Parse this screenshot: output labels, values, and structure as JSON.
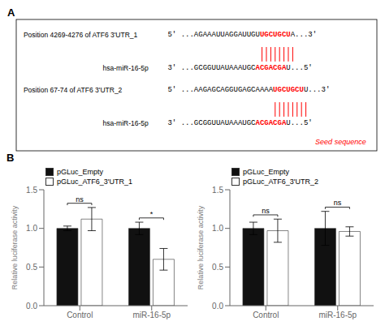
{
  "chart_data": [
    {
      "type": "sequence_alignment",
      "title": "A",
      "sites": [
        {
          "label": "Position 4269-4276 of ATF6 3'UTR_1",
          "target": [
            {
              "text": "5' ...AGAAAUUAGGAUUGU"
            },
            {
              "text": "UGCUGCU",
              "color": "#FF0000"
            },
            {
              "text": "A...3'"
            }
          ],
          "mirna": "hsa-miR-16-5p",
          "mirna_seq": [
            {
              "text": "3' ...GCGGUUAUAAAUGC"
            },
            {
              "text": "ACGACGA",
              "color": "#FF0000"
            },
            {
              "text": "U...5'"
            }
          ],
          "pairs": 8
        },
        {
          "label": "Position 67-74 of ATF6 3'UTR_2",
          "target": [
            {
              "text": "5' ...AAGAGCAGGUGAGCAAAA"
            },
            {
              "text": "UGCUGCU",
              "color": "#FF0000"
            },
            {
              "text": "U...3'"
            }
          ],
          "mirna": "hsa-miR-16-5p",
          "mirna_seq": [
            {
              "text": "3' ...GCGGUUAUAAAUGC"
            },
            {
              "text": "ACGACGA",
              "color": "#FF0000"
            },
            {
              "text": "U...5'"
            }
          ],
          "pairs": 8
        }
      ],
      "annotations": [
        {
          "text": "Seed sequence",
          "color": "#FF0000"
        }
      ]
    },
    {
      "type": "bar",
      "title": "B",
      "categories": [
        "Control",
        "miR-16-5p"
      ],
      "ylabel": "Relative luciferase activity",
      "series": [
        {
          "name": "pGLuc_Empty",
          "color": "#111111",
          "values": [
            1.0,
            1.0
          ],
          "errors": [
            0.03,
            0.08
          ]
        },
        {
          "name": "pGLuc_ATF6_3'UTR_1",
          "color": "#FFFFFF",
          "values": [
            1.12,
            0.6
          ],
          "errors": [
            0.15,
            0.14
          ]
        }
      ],
      "annotations": [
        "ns",
        "*"
      ],
      "ylim": [
        0,
        1.5
      ],
      "yticks": [
        {
          "value": 0,
          "label": "0.0"
        },
        0.5,
        {
          "value": 1,
          "label": "1.0"
        },
        1.5
      ],
      "legend": "upper left",
      "grid": false
    },
    {
      "type": "bar",
      "categories": [
        "Control",
        "miR-16-5p"
      ],
      "ylabel": "Relative luciferase activity",
      "series": [
        {
          "name": "pGLuc_Empty",
          "color": "#111111",
          "values": [
            1.0,
            1.0
          ],
          "errors": [
            0.08,
            0.22
          ]
        },
        {
          "name": "pGLuc_ATF6_3'UTR_2",
          "color": "#FFFFFF",
          "values": [
            0.97,
            0.96
          ],
          "errors": [
            0.15,
            0.06
          ]
        }
      ],
      "annotations": [
        "ns",
        "ns"
      ],
      "ylim": [
        0,
        1.5
      ],
      "yticks": [
        {
          "value": 0,
          "label": "0.0"
        },
        0.5,
        {
          "value": 1,
          "label": "1.0"
        },
        1.5
      ],
      "legend": "upper left",
      "grid": false
    }
  ]
}
